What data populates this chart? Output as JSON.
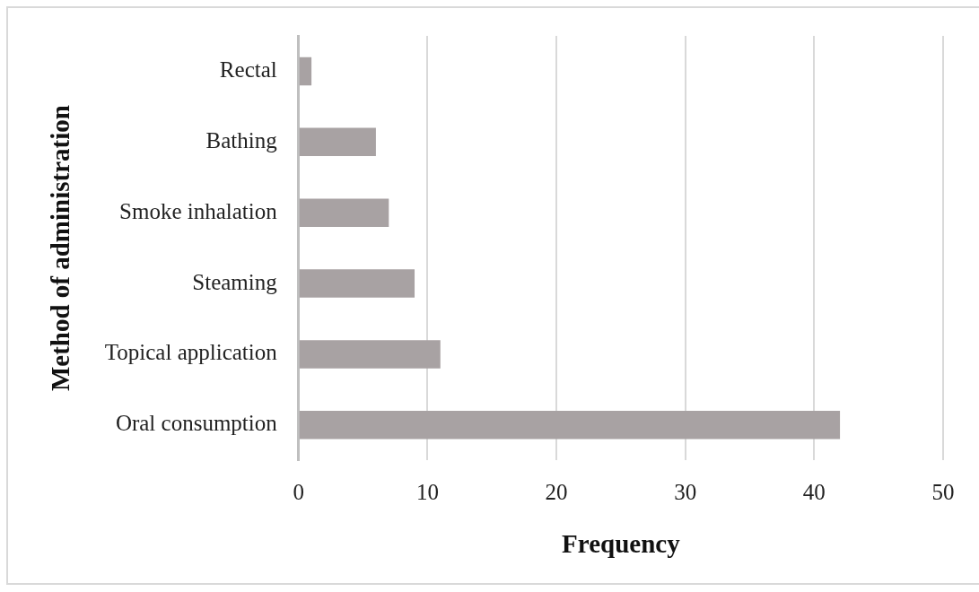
{
  "chart_data": {
    "type": "bar",
    "orientation": "horizontal",
    "xlabel": "Frequency",
    "ylabel": "Method of administration",
    "categories": [
      "Rectal",
      "Bathing",
      "Smoke inhalation",
      "Steaming",
      "Topical application",
      "Oral consumption"
    ],
    "values": [
      1,
      6,
      7,
      9,
      11,
      42
    ],
    "color": "#a8a2a3",
    "xlim": [
      0,
      50
    ],
    "xticks": [
      0,
      10,
      20,
      30,
      40,
      50
    ],
    "grid": "x",
    "legend": false
  }
}
